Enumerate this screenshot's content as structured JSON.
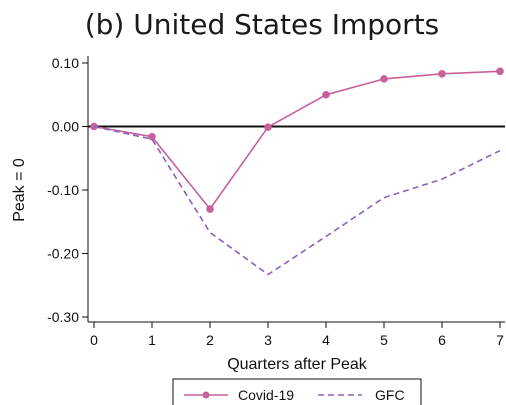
{
  "chart_data": {
    "type": "line",
    "title": "(b) United States Imports",
    "xlabel": "Quarters after Peak",
    "ylabel": "Peak = 0",
    "x": [
      0,
      1,
      2,
      3,
      4,
      5,
      6,
      7
    ],
    "xlim": [
      0,
      7
    ],
    "ylim": [
      -0.3,
      0.1
    ],
    "yticks": [
      0.1,
      0.0,
      -0.1,
      -0.2,
      -0.3
    ],
    "ytick_labels": [
      "0.10",
      "0.00",
      "-0.10",
      "-0.20",
      "-0.30"
    ],
    "xtick_labels": [
      "0",
      "1",
      "2",
      "3",
      "4",
      "5",
      "6",
      "7"
    ],
    "grid": false,
    "zero_line": true,
    "legend_position": "bottom",
    "series": [
      {
        "name": "Covid-19",
        "values": [
          0.0,
          -0.016,
          -0.13,
          -0.001,
          0.05,
          0.075,
          0.083,
          0.087
        ],
        "color": "#c8609c",
        "style": "solid",
        "markers": true
      },
      {
        "name": "GFC",
        "values": [
          0.0,
          -0.02,
          -0.167,
          -0.233,
          -0.173,
          -0.112,
          -0.083,
          -0.038
        ],
        "color": "#8a62b8",
        "style": "dashed",
        "markers": false
      }
    ]
  }
}
